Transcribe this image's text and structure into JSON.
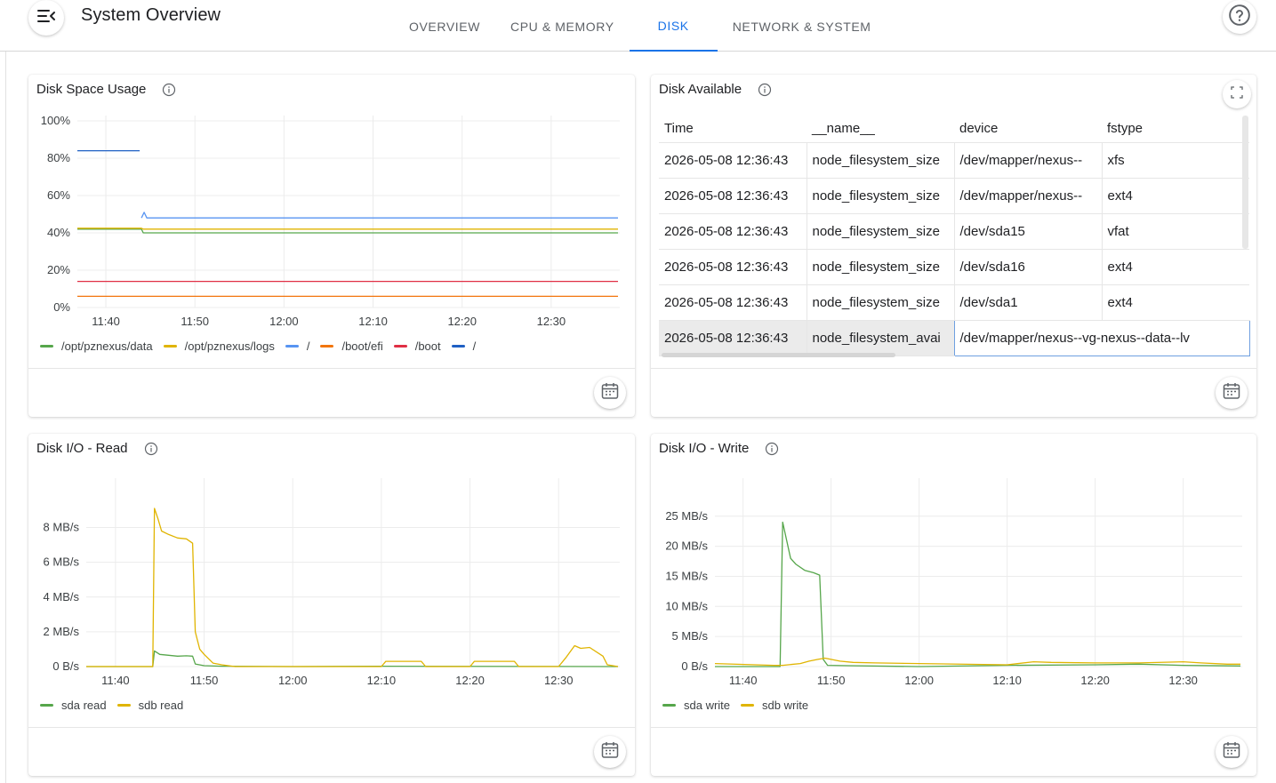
{
  "app": {
    "title": "System Overview"
  },
  "tabs": [
    {
      "label": "OVERVIEW"
    },
    {
      "label": "CPU & MEMORY"
    },
    {
      "label": "DISK"
    },
    {
      "label": "NETWORK & SYSTEM"
    }
  ],
  "active_tab": "DISK",
  "icons": {
    "menu": "menu-collapse-icon",
    "help": "help-circle-icon",
    "info": "info-icon",
    "calendar": "calendar-icon",
    "expand": "fullscreen-icon"
  },
  "colors": {
    "accent": "#1a73e8",
    "green": "#56a64b",
    "yellow": "#e0b400",
    "blue": "#5794f2",
    "orange": "#f2750c",
    "red": "#e02f44",
    "darkblue": "#1f60c4"
  },
  "panels": {
    "disk_space": {
      "title": "Disk Space Usage"
    },
    "disk_available": {
      "title": "Disk Available",
      "columns": [
        "Time",
        "__name__",
        "device",
        "fstype"
      ],
      "rows": [
        {
          "time": "2026-05-08 12:36:43",
          "name": "node_filesystem_size",
          "device": "/dev/mapper/nexus--",
          "fstype": "xfs"
        },
        {
          "time": "2026-05-08 12:36:43",
          "name": "node_filesystem_size",
          "device": "/dev/mapper/nexus--",
          "fstype": "ext4"
        },
        {
          "time": "2026-05-08 12:36:43",
          "name": "node_filesystem_size",
          "device": "/dev/sda15",
          "fstype": "vfat"
        },
        {
          "time": "2026-05-08 12:36:43",
          "name": "node_filesystem_size",
          "device": "/dev/sda16",
          "fstype": "ext4"
        },
        {
          "time": "2026-05-08 12:36:43",
          "name": "node_filesystem_size",
          "device": "/dev/sda1",
          "fstype": "ext4"
        },
        {
          "time": "2026-05-08 12:36:43",
          "name": "node_filesystem_avai",
          "device": "/dev/mapper/nexus--vg-nexus--data--lv",
          "fstype": ""
        }
      ]
    },
    "disk_read": {
      "title": "Disk I/O - Read"
    },
    "disk_write": {
      "title": "Disk I/O - Write"
    }
  },
  "chart_data": [
    {
      "id": "disk_space",
      "type": "line",
      "title": "Disk Space Usage",
      "x_ticks": [
        "11:40",
        "11:50",
        "12:00",
        "12:10",
        "12:20",
        "12:30"
      ],
      "x_tick_minutes": [
        0,
        10,
        20,
        30,
        40,
        50
      ],
      "xlim": [
        -3.2,
        57.5
      ],
      "y_ticks": [
        "0%",
        "20%",
        "40%",
        "60%",
        "80%",
        "100%"
      ],
      "ylim": [
        0,
        100
      ],
      "series": [
        {
          "name": "/opt/pznexus/data",
          "color": "#56a64b",
          "x": [
            -3.2,
            4,
            4.2,
            57.5
          ],
          "y": [
            42,
            42,
            40,
            40
          ]
        },
        {
          "name": "/opt/pznexus/logs",
          "color": "#e0b400",
          "x": [
            -3.2,
            4,
            4.2,
            57.5
          ],
          "y": [
            42.5,
            42.5,
            42,
            42
          ]
        },
        {
          "name": "/",
          "color": "#5794f2",
          "x": [
            4,
            4.3,
            4.6,
            57.5
          ],
          "y": [
            48,
            51,
            48,
            48
          ]
        },
        {
          "name": "/boot/efi",
          "color": "#f2750c",
          "x": [
            -3.2,
            57.5
          ],
          "y": [
            6,
            6
          ]
        },
        {
          "name": "/boot",
          "color": "#e02f44",
          "x": [
            -3.2,
            57.5
          ],
          "y": [
            14,
            14
          ]
        },
        {
          "name": "/",
          "color": "#1f60c4",
          "x": [
            -3.2,
            3.8
          ],
          "y": [
            84,
            84
          ]
        }
      ]
    },
    {
      "id": "disk_read",
      "type": "line",
      "title": "Disk I/O - Read",
      "x_ticks": [
        "11:40",
        "11:50",
        "12:00",
        "12:10",
        "12:20",
        "12:30"
      ],
      "x_tick_minutes": [
        0,
        10,
        20,
        30,
        40,
        50
      ],
      "xlim": [
        -3.3,
        56.7
      ],
      "y_ticks": [
        "0 B/s",
        "2 MB/s",
        "4 MB/s",
        "6 MB/s",
        "8 MB/s"
      ],
      "ylim": [
        0,
        9
      ],
      "series": [
        {
          "name": "sda read",
          "color": "#56a64b",
          "x": [
            -3.3,
            4.2,
            4.4,
            5,
            6,
            7,
            8,
            8.7,
            9,
            10,
            12,
            20,
            30,
            56.7
          ],
          "y": [
            0,
            0,
            0.9,
            0.7,
            0.65,
            0.6,
            0.62,
            0.6,
            0.15,
            0.05,
            0.02,
            0,
            0.02,
            0
          ]
        },
        {
          "name": "sdb read",
          "color": "#e0b400",
          "x": [
            -3.3,
            4.2,
            4.4,
            4.8,
            5.2,
            6,
            7,
            8,
            8.7,
            9,
            9.5,
            10,
            11,
            12,
            13.5,
            30,
            30.5,
            34.5,
            35,
            40,
            40.5,
            45,
            45.5,
            50,
            50.8,
            51.8,
            52.5,
            53.5,
            55,
            55.5,
            56.7
          ],
          "y": [
            0,
            0,
            9.1,
            8.5,
            7.8,
            7.6,
            7.4,
            7.35,
            7.1,
            2.0,
            1.0,
            0.7,
            0.2,
            0.1,
            0,
            0,
            0.3,
            0.3,
            0,
            0,
            0.3,
            0.3,
            0,
            0,
            0.5,
            1.2,
            1.05,
            1.1,
            0.6,
            0.1,
            0
          ]
        }
      ]
    },
    {
      "id": "disk_write",
      "type": "line",
      "title": "Disk I/O - Write",
      "x_ticks": [
        "11:40",
        "11:50",
        "12:00",
        "12:10",
        "12:20",
        "12:30"
      ],
      "x_tick_minutes": [
        0,
        10,
        20,
        30,
        40,
        50
      ],
      "xlim": [
        -3.2,
        56.5
      ],
      "y_ticks": [
        "0 B/s",
        "5 MB/s",
        "10 MB/s",
        "15 MB/s",
        "20 MB/s",
        "25 MB/s"
      ],
      "ylim": [
        0,
        26
      ],
      "series": [
        {
          "name": "sda write",
          "color": "#56a64b",
          "x": [
            -3.2,
            4.2,
            4.5,
            5.4,
            6,
            7,
            8,
            8.7,
            9.1,
            9.6,
            12,
            20,
            30,
            40,
            45,
            50,
            56.5
          ],
          "y": [
            0,
            0,
            24,
            18,
            17,
            16,
            15.6,
            15.2,
            1.2,
            0.2,
            0.15,
            0,
            0.2,
            0.3,
            0.4,
            0.2,
            0.1
          ]
        },
        {
          "name": "sdb write",
          "color": "#e0b400",
          "x": [
            -3.2,
            3.5,
            4.5,
            6.5,
            7.5,
            8.5,
            9.3,
            11,
            12.5,
            15,
            20,
            30,
            33,
            35,
            40,
            45,
            50,
            52,
            55,
            56.5
          ],
          "y": [
            0.5,
            0.2,
            0.2,
            0.5,
            0.9,
            1.2,
            1.4,
            0.9,
            0.7,
            0.6,
            0.5,
            0.3,
            0.8,
            0.7,
            0.6,
            0.6,
            0.8,
            0.6,
            0.4,
            0.4
          ]
        }
      ]
    }
  ]
}
